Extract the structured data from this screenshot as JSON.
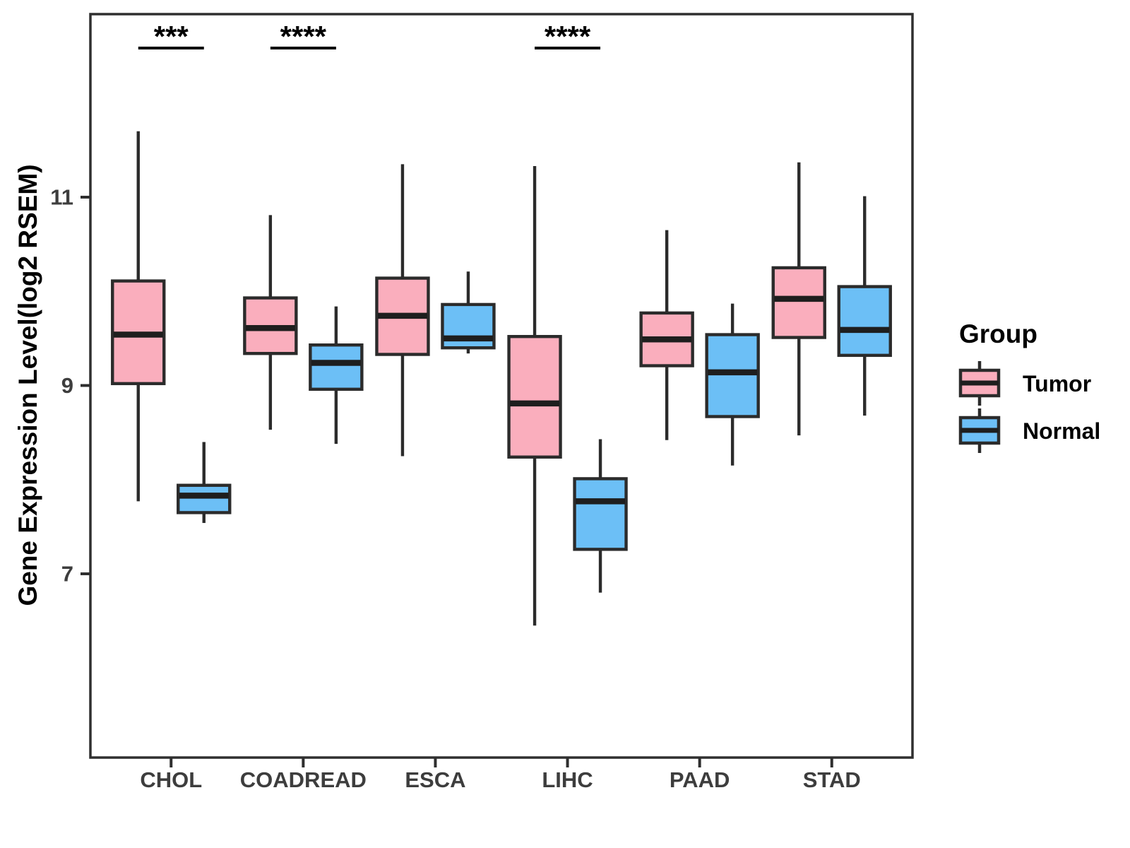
{
  "figure": {
    "background": "#ffffff"
  },
  "legend": {
    "title": "Group",
    "items": [
      {
        "label": "Tumor",
        "color": "#FAAEBD"
      },
      {
        "label": "Normal",
        "color": "#6CBFF6"
      }
    ]
  },
  "style_colors": {
    "box_border": "#2B2B2B",
    "median_line": "#1E1E1E",
    "panel_border": "#2F2F2F",
    "tick_text": "#3D3D3D",
    "significance": "#000000"
  },
  "chart_data": {
    "type": "boxplot",
    "title": "",
    "xlabel": "",
    "ylabel": "Gene Expression Level(log2 RSEM)",
    "categories": [
      "CHOL",
      "COADREAD",
      "ESCA",
      "LIHC",
      "PAAD",
      "STAD"
    ],
    "yticks": [
      7,
      9,
      11
    ],
    "ylim": [
      5.05,
      12.95
    ],
    "grid": false,
    "legend_position": "right",
    "series": [
      {
        "name": "Tumor",
        "color": "#FAAEBD",
        "boxes": [
          {
            "low": 7.77,
            "q1": 9.02,
            "median": 9.54,
            "q3": 10.11,
            "high": 11.7
          },
          {
            "low": 8.53,
            "q1": 9.34,
            "median": 9.61,
            "q3": 9.93,
            "high": 10.81
          },
          {
            "low": 8.25,
            "q1": 9.33,
            "median": 9.74,
            "q3": 10.14,
            "high": 11.35
          },
          {
            "low": 6.45,
            "q1": 8.24,
            "median": 8.81,
            "q3": 9.52,
            "high": 11.33
          },
          {
            "low": 8.42,
            "q1": 9.21,
            "median": 9.49,
            "q3": 9.77,
            "high": 10.65
          },
          {
            "low": 8.47,
            "q1": 9.51,
            "median": 9.92,
            "q3": 10.25,
            "high": 11.37
          }
        ]
      },
      {
        "name": "Normal",
        "color": "#6CBFF6",
        "boxes": [
          {
            "low": 7.54,
            "q1": 7.65,
            "median": 7.83,
            "q3": 7.94,
            "high": 8.4
          },
          {
            "low": 8.38,
            "q1": 8.96,
            "median": 9.24,
            "q3": 9.43,
            "high": 9.84
          },
          {
            "low": 9.34,
            "q1": 9.4,
            "median": 9.5,
            "q3": 9.86,
            "high": 10.21
          },
          {
            "low": 6.8,
            "q1": 7.26,
            "median": 7.77,
            "q3": 8.01,
            "high": 8.43
          },
          {
            "low": 8.15,
            "q1": 8.67,
            "median": 9.14,
            "q3": 9.54,
            "high": 9.87
          },
          {
            "low": 8.68,
            "q1": 9.32,
            "median": 9.59,
            "q3": 10.05,
            "high": 11.01
          }
        ]
      }
    ],
    "significance": [
      {
        "category": "CHOL",
        "label": "***"
      },
      {
        "category": "COADREAD",
        "label": "****"
      },
      {
        "category": "LIHC",
        "label": "****"
      }
    ]
  }
}
